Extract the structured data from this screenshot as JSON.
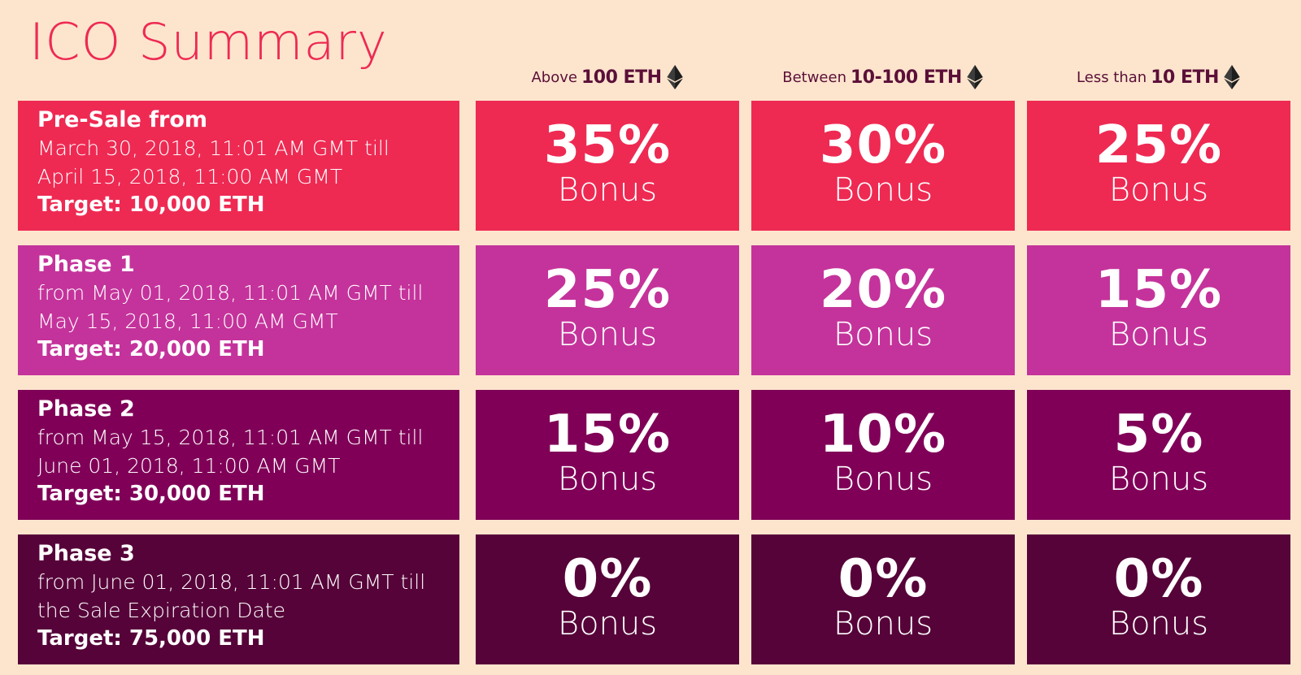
{
  "title": "ICO Summary",
  "headers": [
    {
      "lead": "Above",
      "strong": "100 ETH"
    },
    {
      "lead": "Between",
      "strong": "10-100 ETH"
    },
    {
      "lead": "Less than",
      "strong": "10 ETH"
    }
  ],
  "eth_icon": "ethereum-icon",
  "bonus_word": "Bonus",
  "colors": {
    "background": "#fde5cd",
    "title": "#ee2a53",
    "header_text": "#5b0f38",
    "presale": "#ee2a53",
    "phase1": "#c4339b",
    "phase2": "#800058",
    "phase3": "#560339"
  },
  "rows": [
    {
      "title": "Pre-Sale from",
      "line1": "March 30, 2018, 11:01 AM GMT till",
      "line2": "April 15, 2018, 11:00 AM GMT",
      "target": "Target: 10,000 ETH",
      "bonuses": [
        "35%",
        "30%",
        "25%"
      ],
      "color": "#ee2a53"
    },
    {
      "title": "Phase 1",
      "line1": "from May 01, 2018, 11:01 AM GMT till",
      "line2": "May 15, 2018, 11:00 AM GMT",
      "target": "Target: 20,000 ETH",
      "bonuses": [
        "25%",
        "20%",
        "15%"
      ],
      "color": "#c4339b"
    },
    {
      "title": "Phase 2",
      "line1": "from May 15, 2018, 11:01 AM GMT till",
      "line2": "June 01, 2018, 11:00 AM GMT",
      "target": "Target: 30,000 ETH",
      "bonuses": [
        "15%",
        "10%",
        "5%"
      ],
      "color": "#800058"
    },
    {
      "title": "Phase 3",
      "line1": "from June 01, 2018, 11:01 AM GMT till",
      "line2": "the Sale Expiration Date",
      "target": "Target: 75,000 ETH",
      "bonuses": [
        "0%",
        "0%",
        "0%"
      ],
      "color": "#560339"
    }
  ]
}
